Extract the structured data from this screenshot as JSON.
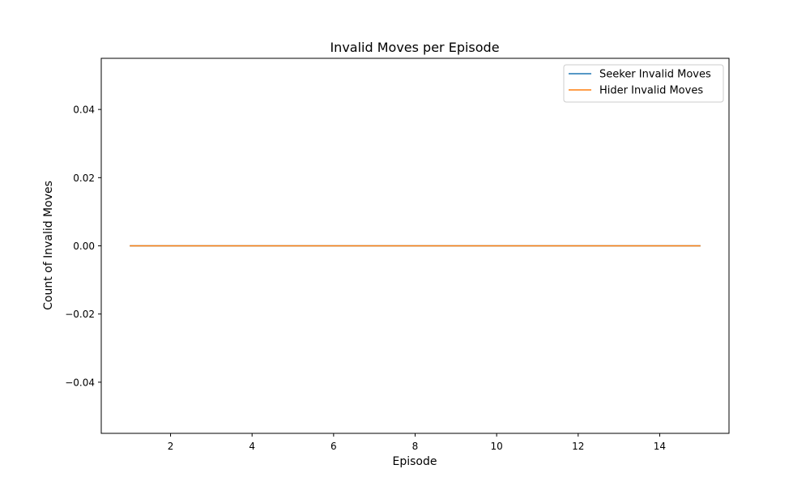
{
  "chart_data": {
    "type": "line",
    "title": "Invalid Moves per Episode",
    "xlabel": "Episode",
    "ylabel": "Count of Invalid Moves",
    "x": [
      1,
      2,
      3,
      4,
      5,
      6,
      7,
      8,
      9,
      10,
      11,
      12,
      13,
      14,
      15
    ],
    "series": [
      {
        "name": "Seeker Invalid Moves",
        "color": "#1f77b4",
        "values": [
          0,
          0,
          0,
          0,
          0,
          0,
          0,
          0,
          0,
          0,
          0,
          0,
          0,
          0,
          0
        ]
      },
      {
        "name": "Hider Invalid Moves",
        "color": "#ff7f0e",
        "values": [
          0,
          0,
          0,
          0,
          0,
          0,
          0,
          0,
          0,
          0,
          0,
          0,
          0,
          0,
          0
        ]
      }
    ],
    "xlim": [
      0.3,
      15.7
    ],
    "ylim": [
      -0.055,
      0.055
    ],
    "xticks": [
      2,
      4,
      6,
      8,
      10,
      12,
      14
    ],
    "xtick_labels": [
      "2",
      "4",
      "6",
      "8",
      "10",
      "12",
      "14"
    ],
    "yticks": [
      -0.04,
      -0.02,
      0.0,
      0.02,
      0.04
    ],
    "ytick_labels": [
      "−0.04",
      "−0.02",
      "0.00",
      "0.02",
      "0.04"
    ],
    "grid": false,
    "legend_position": "top-right"
  }
}
